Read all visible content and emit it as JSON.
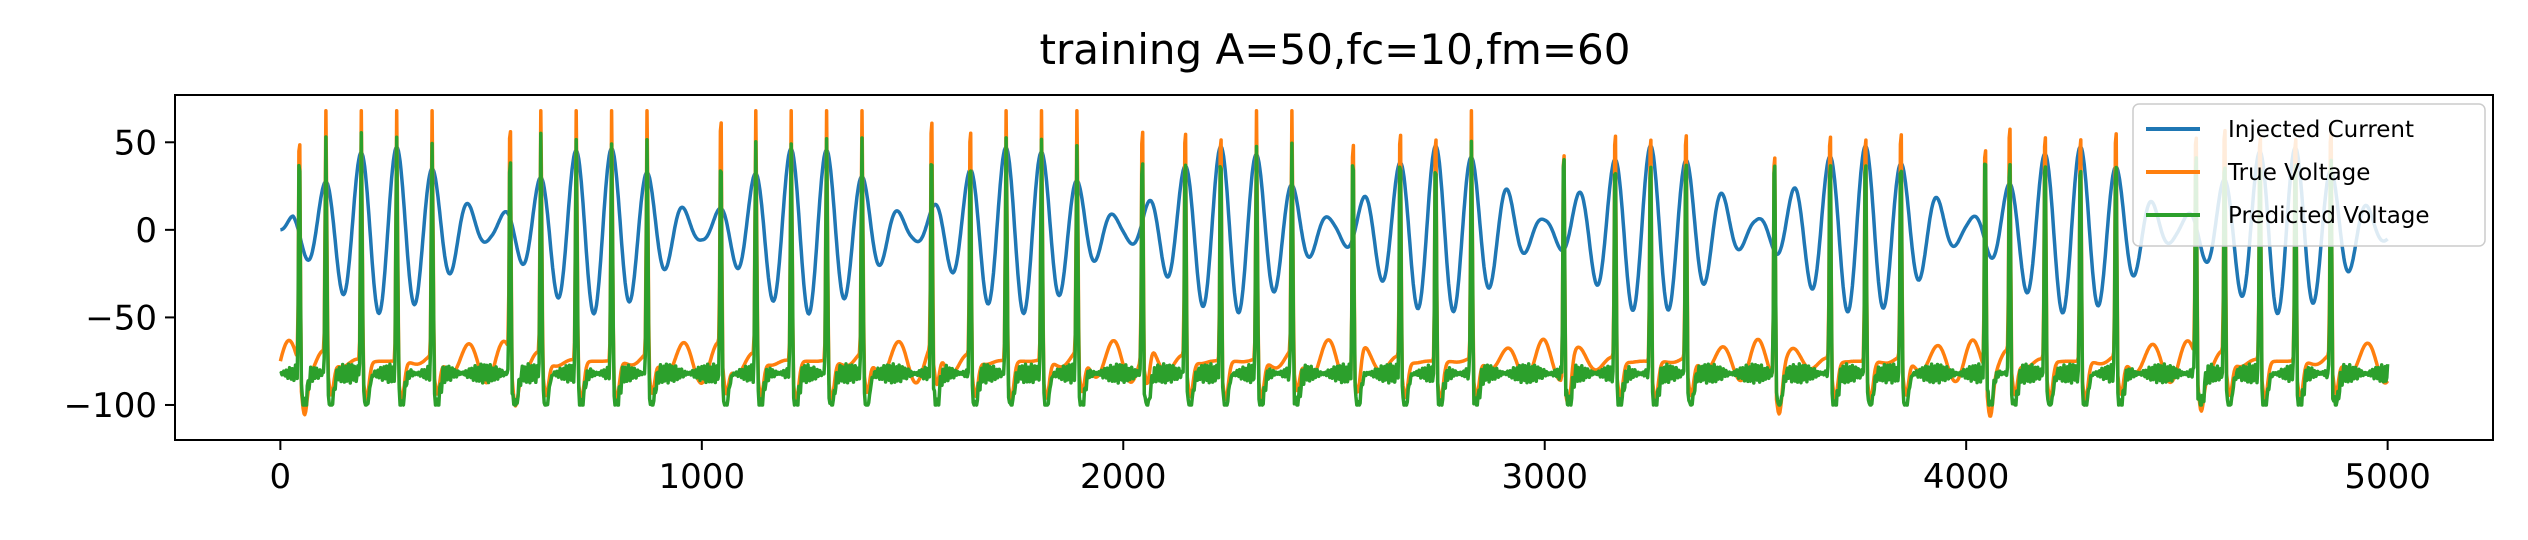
{
  "chart_data": {
    "type": "line",
    "title": "training A=50,fc=10,fm=60",
    "xlabel": "",
    "ylabel": "",
    "xlim": [
      -250,
      5250
    ],
    "ylim": [
      -120,
      77
    ],
    "xticks": [
      0,
      1000,
      2000,
      3000,
      4000,
      5000
    ],
    "xtick_labels": [
      "0",
      "1000",
      "2000",
      "3000",
      "4000",
      "5000"
    ],
    "yticks": [
      50,
      0,
      -50,
      -100
    ],
    "ytick_labels": [
      "50",
      "0",
      "−50",
      "−100"
    ],
    "grid": false,
    "legend_position": "top-right",
    "x_range": [
      0,
      5000
    ],
    "series": [
      {
        "name": "Injected Current",
        "color": "#1f77b4",
        "description": "A=50, fc=10, fm=60 modulated sinusoid, amplitude ~50, repeating every ~500 samples",
        "x": [
          0,
          50,
          100,
          150,
          200,
          250,
          300,
          350,
          400,
          450,
          500,
          550,
          600,
          650,
          700,
          750,
          800,
          850,
          900,
          950,
          1000
        ],
        "y": [
          0,
          -20,
          33,
          -40,
          48,
          -38,
          47,
          -20,
          10,
          3,
          8,
          -20,
          33,
          -40,
          48,
          -38,
          47,
          -20,
          10,
          3,
          8
        ]
      },
      {
        "name": "True Voltage",
        "color": "#ff7f0e",
        "description": "spiking neuron voltage, resting ~-75, spikes to ~68, troughs to ~-110",
        "spike_peak": 68,
        "rest": -75,
        "trough": -110
      },
      {
        "name": "Predicted Voltage",
        "color": "#2ca02c",
        "description": "predicted voltage tracking true voltage, resting ~-82, spikes to ~68",
        "spike_peak": 68,
        "rest": -82,
        "trough": -98
      }
    ]
  }
}
